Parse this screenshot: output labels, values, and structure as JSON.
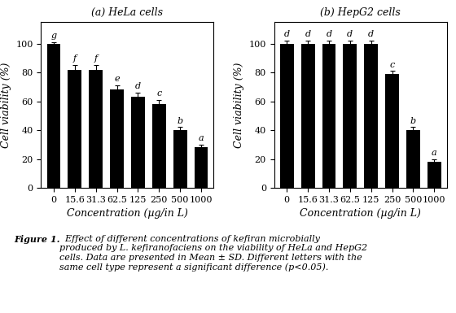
{
  "chart_data": [
    {
      "type": "bar",
      "title": "(a) HeLa cells",
      "categories": [
        "0",
        "15.6",
        "31.3",
        "62.5",
        "125",
        "250",
        "500",
        "1000"
      ],
      "values": [
        100,
        82,
        82,
        68,
        63,
        58,
        40,
        28
      ],
      "errors": [
        1,
        3,
        3,
        3,
        3,
        3,
        2,
        2
      ],
      "annotations": [
        "g",
        "f",
        "f",
        "e",
        "d",
        "c",
        "b",
        "a"
      ],
      "color": "#000000",
      "xlabel": "Concentration (µg/in L)",
      "ylabel": "Cell viability (%)",
      "ylim": [
        0,
        115
      ],
      "yticks": [
        0,
        20,
        40,
        60,
        80,
        100
      ]
    },
    {
      "type": "bar",
      "title": "(b) HepG2 cells",
      "categories": [
        "0",
        "15.6",
        "31.3",
        "62.5",
        "125",
        "250",
        "500",
        "1000"
      ],
      "values": [
        100,
        100,
        100,
        100,
        100,
        79,
        40,
        18
      ],
      "errors": [
        2,
        2,
        2,
        2,
        2,
        2,
        2,
        2
      ],
      "annotations": [
        "d",
        "d",
        "d",
        "d",
        "d",
        "c",
        "b",
        "a"
      ],
      "color": "#000000",
      "xlabel": "Concentration (µg/in L)",
      "ylabel": "Cell viability (%)",
      "ylim": [
        0,
        115
      ],
      "yticks": [
        0,
        20,
        40,
        60,
        80,
        100
      ]
    }
  ],
  "caption": {
    "bold": "Figure 1.",
    "text": "  Effect of different concentrations of kefiran microbially\nproduced by L. kefiranofaciens on the viability of HeLa and HepG2\ncells. Data are presented in Mean ± SD. Different letters with the\nsame cell type represent a significant difference (p<0.05)."
  }
}
